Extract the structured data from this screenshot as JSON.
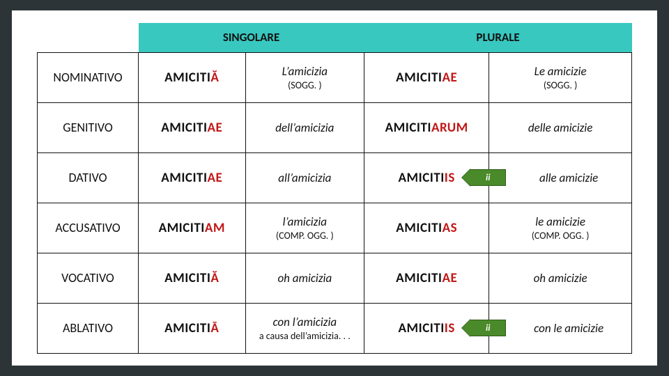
{
  "colors": {
    "page_bg": "#2d3438",
    "sheet_bg": "#ffffff",
    "header_bg": "#38c8c0",
    "text": "#111111",
    "ending": "#c21717",
    "tag_fill": "#4a8a2a",
    "tag_border": "#2f5c1a",
    "cell_border": "#111111"
  },
  "header": {
    "singular": "SINGOLARE",
    "plural": "PLURALE"
  },
  "tag_text": "ii",
  "rows": [
    {
      "case": "NOMINATIVO",
      "sg_stem": "AMICITI",
      "sg_end": "Ă",
      "sg_trans": "L’amicizia",
      "sg_sub": "(SOGG. )",
      "pl_stem": "AMICITI",
      "pl_end": "AE",
      "pl_trans": "Le amicizie",
      "pl_sub": "(SOGG. )",
      "tag": false
    },
    {
      "case": "GENITIVO",
      "sg_stem": "AMICITI",
      "sg_end": "AE",
      "sg_trans": "dell’amicizia",
      "sg_sub": "",
      "pl_stem": "AMICITI",
      "pl_end": "ARUM",
      "pl_trans": "delle amicizie",
      "pl_sub": "",
      "tag": false
    },
    {
      "case": "DATIVO",
      "sg_stem": "AMICITI",
      "sg_end": "AE",
      "sg_trans": "all’amicizia",
      "sg_sub": "",
      "pl_stem": "AMICITI",
      "pl_end": "IS",
      "pl_trans": "alle amicizie",
      "pl_sub": "",
      "tag": true
    },
    {
      "case": "ACCUSATIVO",
      "sg_stem": "AMICITI",
      "sg_end": "AM",
      "sg_trans": "l’amicizia",
      "sg_sub": "(COMP. OGG. )",
      "pl_stem": "AMICITI",
      "pl_end": "AS",
      "pl_trans": "le amicizie",
      "pl_sub": "(COMP. OGG. )",
      "tag": false
    },
    {
      "case": "VOCATIVO",
      "sg_stem": "AMICITI",
      "sg_end": "Ă",
      "sg_trans": "oh amicizia",
      "sg_sub": "",
      "pl_stem": "AMICITI",
      "pl_end": "AE",
      "pl_trans": "oh amicizie",
      "pl_sub": "",
      "tag": false
    },
    {
      "case": "ABLATIVO",
      "sg_stem": "AMICITI",
      "sg_end": "Ā",
      "sg_trans": "con l’amicizia",
      "sg_sub": "a causa dell’amicizia. . .",
      "pl_stem": "AMICITI",
      "pl_end": "IS",
      "pl_trans": "con le amicizie",
      "pl_sub": "",
      "tag": true
    }
  ]
}
